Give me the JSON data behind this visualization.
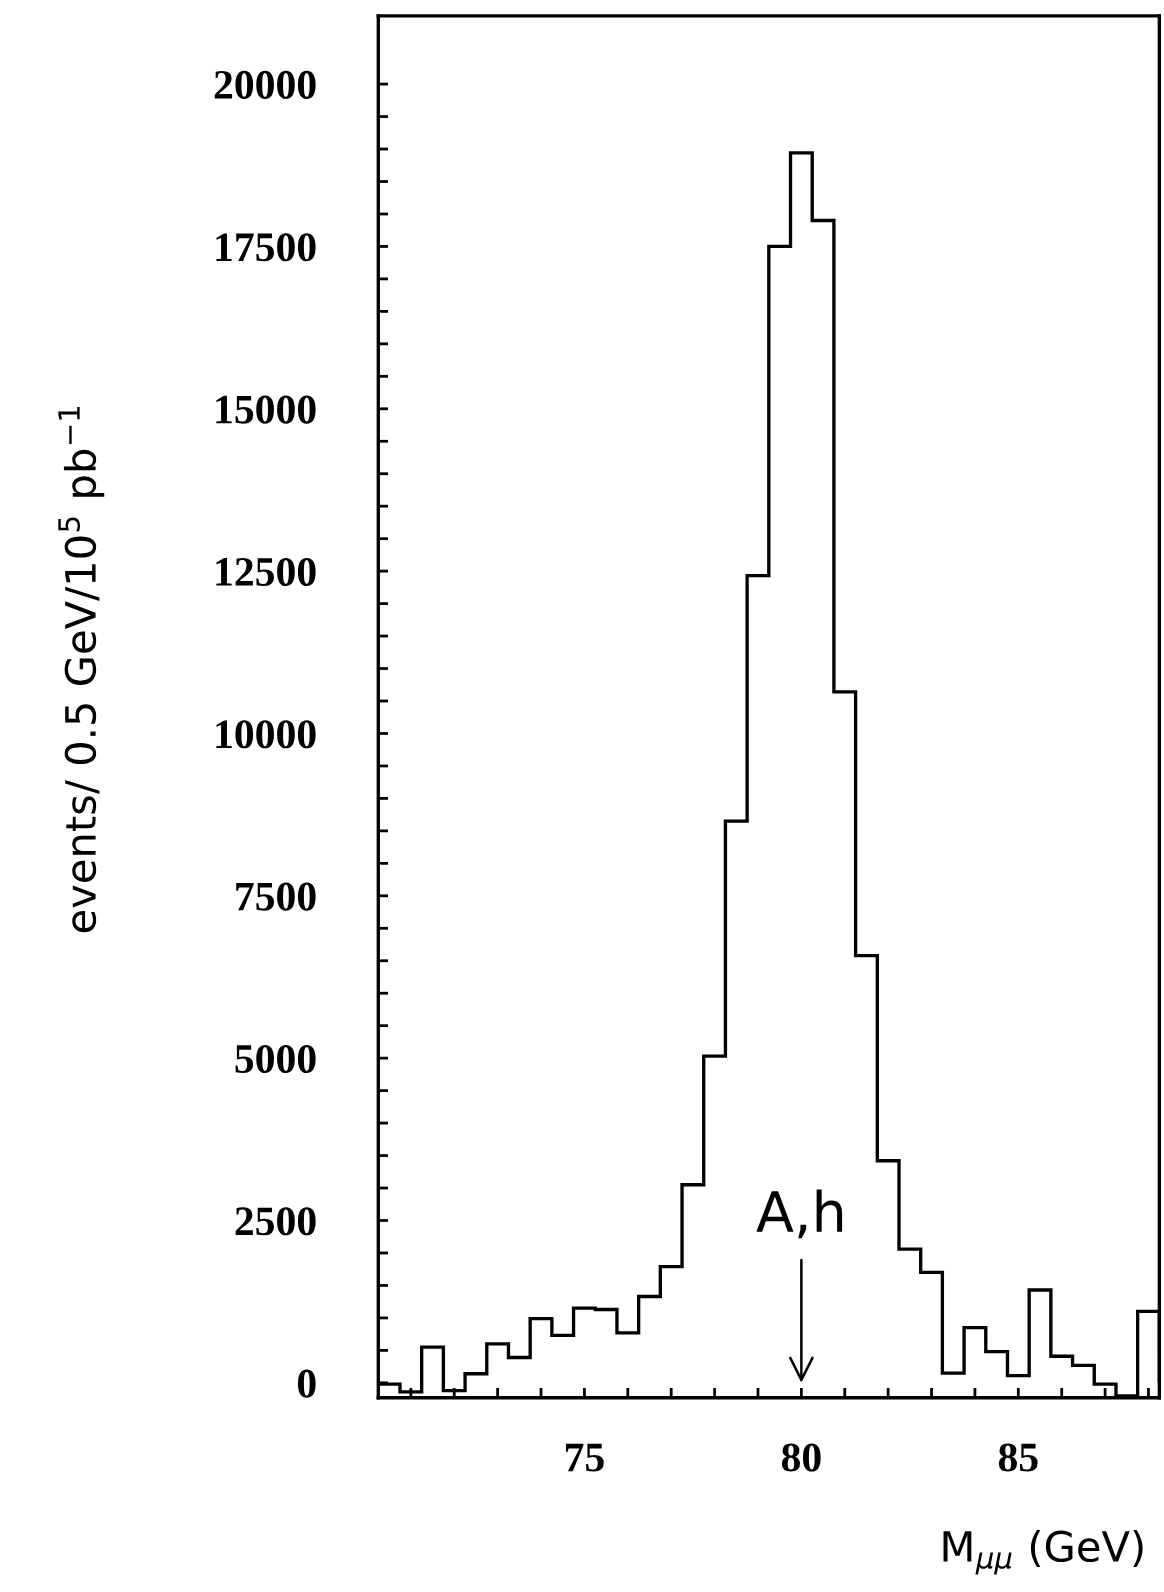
{
  "chart_data": {
    "type": "histogram",
    "xlabel": "M$_{μμ}$ (GeV)",
    "ylabel": "events/ 0.5 GeV/10$^{5}$ pb$^{−1}$",
    "bins": [
      70.25,
      70.75,
      71.25,
      71.75,
      72.25,
      72.75,
      73.25,
      73.75,
      74.25,
      74.75,
      75.25,
      75.75,
      76.25,
      76.75,
      77.25,
      77.75,
      78.25,
      78.75,
      79.25,
      79.75,
      80.25,
      80.75,
      81.25,
      81.75,
      82.25,
      82.75,
      83.25,
      83.75,
      84.25,
      84.75,
      85.25,
      85.75,
      86.25,
      86.75,
      87.25,
      87.75,
      88.25
    ],
    "values": [
      -20,
      -140,
      550,
      -120,
      140,
      600,
      390,
      990,
      730,
      1150,
      1130,
      770,
      1330,
      1790,
      3050,
      5030,
      8650,
      12430,
      17500,
      18940,
      17900,
      10640,
      6580,
      3420,
      2060,
      1700,
      150,
      850,
      480,
      110,
      1430,
      410,
      270,
      -20,
      -200,
      1100
    ],
    "color": "#000000",
    "xlim": [
      70.25,
      88.25
    ],
    "xticks": [
      {
        "value": 71,
        "label": null
      },
      {
        "value": 72,
        "label": null
      },
      {
        "value": 73,
        "label": null
      },
      {
        "value": 74,
        "label": null
      },
      75,
      {
        "value": 76,
        "label": null
      },
      {
        "value": 77,
        "label": null
      },
      {
        "value": 78,
        "label": null
      },
      {
        "value": 79,
        "label": null
      },
      80,
      {
        "value": 81,
        "label": null
      },
      {
        "value": 82,
        "label": null
      },
      {
        "value": 83,
        "label": null
      },
      {
        "value": 84,
        "label": null
      },
      85,
      {
        "value": 86,
        "label": null
      },
      {
        "value": 87,
        "label": null
      },
      {
        "value": 88,
        "label": null
      }
    ],
    "ylim": [
      -230,
      21050
    ],
    "yticks": [
      0,
      {
        "value": 500,
        "label": null
      },
      {
        "value": 1000,
        "label": null
      },
      {
        "value": 1500,
        "label": null
      },
      {
        "value": 2000,
        "label": null
      },
      2500,
      {
        "value": 3000,
        "label": null
      },
      {
        "value": 3500,
        "label": null
      },
      {
        "value": 4000,
        "label": null
      },
      {
        "value": 4500,
        "label": null
      },
      5000,
      {
        "value": 5500,
        "label": null
      },
      {
        "value": 6000,
        "label": null
      },
      {
        "value": 6500,
        "label": null
      },
      {
        "value": 7000,
        "label": null
      },
      7500,
      {
        "value": 8000,
        "label": null
      },
      {
        "value": 8500,
        "label": null
      },
      {
        "value": 9000,
        "label": null
      },
      {
        "value": 9500,
        "label": null
      },
      10000,
      {
        "value": 10500,
        "label": null
      },
      {
        "value": 11000,
        "label": null
      },
      {
        "value": 11500,
        "label": null
      },
      {
        "value": 12000,
        "label": null
      },
      12500,
      {
        "value": 13000,
        "label": null
      },
      {
        "value": 13500,
        "label": null
      },
      {
        "value": 14000,
        "label": null
      },
      {
        "value": 14500,
        "label": null
      },
      15000,
      {
        "value": 15500,
        "label": null
      },
      {
        "value": 16000,
        "label": null
      },
      {
        "value": 16500,
        "label": null
      },
      {
        "value": 17000,
        "label": null
      },
      17500,
      {
        "value": 18000,
        "label": null
      },
      {
        "value": 18500,
        "label": null
      },
      {
        "value": 19000,
        "label": null
      },
      {
        "value": 19500,
        "label": null
      },
      20000
    ],
    "annotations": [
      {
        "text": "A,h",
        "x": 80,
        "y": 0
      }
    ],
    "grid": false,
    "legend": false
  }
}
